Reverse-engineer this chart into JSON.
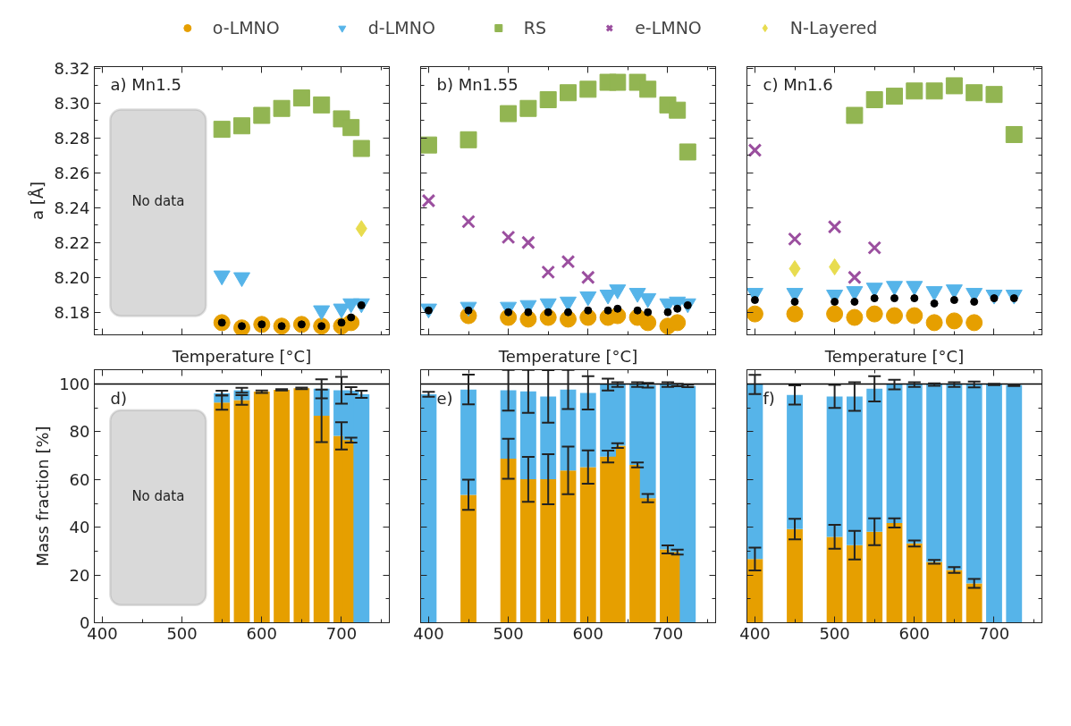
{
  "chart_data": [
    {
      "type": "scatter",
      "annotations": [
        "a) Mn1.5"
      ],
      "ylabel": "a [Å]",
      "tick_labels": "y",
      "legend": "top",
      "xlim": [
        390,
        760
      ],
      "ylim": [
        8.167,
        8.321
      ],
      "xticks": [
        400,
        {
          "value": 450,
          "label": null
        },
        500,
        {
          "value": 550,
          "label": null
        },
        600,
        {
          "value": 650,
          "label": null
        },
        700,
        {
          "value": 750,
          "label": null
        }
      ],
      "yticks": [
        {
          "value": 8.17,
          "label": null
        },
        {
          "value": 8.18,
          "label": "8.18"
        },
        {
          "value": 8.19,
          "label": null
        },
        {
          "value": 8.2,
          "label": "8.20"
        },
        {
          "value": 8.21,
          "label": null
        },
        {
          "value": 8.22,
          "label": "8.22"
        },
        {
          "value": 8.23,
          "label": null
        },
        {
          "value": 8.24,
          "label": "8.24"
        },
        {
          "value": 8.25,
          "label": null
        },
        {
          "value": 8.26,
          "label": "8.26"
        },
        {
          "value": 8.27,
          "label": null
        },
        {
          "value": 8.28,
          "label": "8.28"
        },
        {
          "value": 8.29,
          "label": null
        },
        {
          "value": 8.3,
          "label": "8.30"
        },
        {
          "value": 8.31,
          "label": null
        },
        {
          "value": 8.32,
          "label": "8.32"
        }
      ],
      "bands": [
        {
          "axis": "x",
          "from": 410,
          "to": 530,
          "label": "No data",
          "color": "#d9d9d9"
        }
      ],
      "series": [
        {
          "name": "o-LMNO",
          "color": "#e69f00",
          "marker": "circle",
          "x": [
            550,
            575,
            600,
            625,
            650,
            675,
            700,
            712
          ],
          "values": [
            8.174,
            8.171,
            8.173,
            8.172,
            8.173,
            8.172,
            8.172,
            8.174
          ]
        },
        {
          "name": "d-LMNO",
          "color": "#56b4e9",
          "marker": "triangle",
          "x": [
            550,
            575,
            675,
            700,
            712,
            725
          ],
          "values": [
            8.201,
            8.2,
            8.181,
            8.182,
            8.185,
            8.185
          ]
        },
        {
          "name": "RS",
          "color": "#92b552",
          "marker": "square",
          "x": [
            550,
            575,
            600,
            625,
            650,
            675,
            700,
            712,
            725
          ],
          "values": [
            8.285,
            8.287,
            8.293,
            8.297,
            8.303,
            8.299,
            8.291,
            8.286,
            8.274
          ]
        },
        {
          "name": "N-Layered",
          "color": "#e8dc4f",
          "marker": "diamond",
          "x": [
            725
          ],
          "values": [
            8.228
          ]
        },
        {
          "color": "#000000",
          "marker": "circle",
          "x": [
            550,
            575,
            600,
            625,
            650,
            675,
            700,
            712,
            725
          ],
          "values": [
            8.174,
            8.172,
            8.173,
            8.172,
            8.173,
            8.172,
            8.174,
            8.177,
            8.184
          ]
        }
      ]
    },
    {
      "type": "scatter",
      "annotations": [
        "b) Mn1.55"
      ],
      "tick_labels": false,
      "legend": "top",
      "xlim": [
        390,
        760
      ],
      "ylim": [
        8.167,
        8.321
      ],
      "xticks": [
        400,
        {
          "value": 450,
          "label": null
        },
        500,
        {
          "value": 550,
          "label": null
        },
        600,
        {
          "value": 650,
          "label": null
        },
        700,
        {
          "value": 750,
          "label": null
        }
      ],
      "yticks": [
        {
          "value": 8.17,
          "label": null
        },
        {
          "value": 8.18,
          "label": "8.18"
        },
        {
          "value": 8.19,
          "label": null
        },
        {
          "value": 8.2,
          "label": "8.20"
        },
        {
          "value": 8.21,
          "label": null
        },
        {
          "value": 8.22,
          "label": "8.22"
        },
        {
          "value": 8.23,
          "label": null
        },
        {
          "value": 8.24,
          "label": "8.24"
        },
        {
          "value": 8.25,
          "label": null
        },
        {
          "value": 8.26,
          "label": "8.26"
        },
        {
          "value": 8.27,
          "label": null
        },
        {
          "value": 8.28,
          "label": "8.28"
        },
        {
          "value": 8.29,
          "label": null
        },
        {
          "value": 8.3,
          "label": "8.30"
        },
        {
          "value": 8.31,
          "label": null
        },
        {
          "value": 8.32,
          "label": "8.32"
        }
      ],
      "series": [
        {
          "name": "o-LMNO",
          "color": "#e69f00",
          "marker": "circle",
          "x": [
            450,
            500,
            525,
            550,
            575,
            600,
            625,
            637,
            662,
            675,
            700,
            712
          ],
          "values": [
            8.178,
            8.177,
            8.176,
            8.177,
            8.176,
            8.177,
            8.177,
            8.178,
            8.177,
            8.174,
            8.172,
            8.174
          ]
        },
        {
          "name": "d-LMNO",
          "color": "#56b4e9",
          "marker": "triangle",
          "x": [
            400,
            450,
            500,
            525,
            550,
            575,
            600,
            625,
            637,
            662,
            675,
            700,
            712,
            725
          ],
          "values": [
            8.182,
            8.183,
            8.183,
            8.184,
            8.185,
            8.186,
            8.189,
            8.19,
            8.193,
            8.191,
            8.188,
            8.185,
            8.186,
            8.185
          ]
        },
        {
          "name": "RS",
          "color": "#92b552",
          "marker": "square",
          "x": [
            400,
            450,
            500,
            525,
            550,
            575,
            600,
            625,
            637,
            662,
            675,
            700,
            712,
            725
          ],
          "values": [
            8.276,
            8.279,
            8.294,
            8.297,
            8.302,
            8.306,
            8.308,
            8.312,
            8.312,
            8.312,
            8.308,
            8.299,
            8.296,
            8.272
          ]
        },
        {
          "name": "e-LMNO",
          "color": "#9b4f9f",
          "marker": "cross",
          "x": [
            400,
            450,
            500,
            525,
            550,
            575,
            600
          ],
          "values": [
            8.244,
            8.232,
            8.223,
            8.22,
            8.203,
            8.209,
            8.2
          ]
        },
        {
          "color": "#000000",
          "marker": "circle",
          "x": [
            400,
            450,
            500,
            525,
            550,
            575,
            600,
            625,
            637,
            662,
            675,
            700,
            712,
            725
          ],
          "values": [
            8.181,
            8.181,
            8.18,
            8.18,
            8.18,
            8.18,
            8.181,
            8.181,
            8.182,
            8.181,
            8.18,
            8.18,
            8.182,
            8.184
          ]
        }
      ]
    },
    {
      "type": "scatter",
      "annotations": [
        "c) Mn1.6"
      ],
      "tick_labels": false,
      "legend": "top",
      "xlim": [
        390,
        760
      ],
      "ylim": [
        8.167,
        8.321
      ],
      "xticks": [
        400,
        {
          "value": 450,
          "label": null
        },
        500,
        {
          "value": 550,
          "label": null
        },
        600,
        {
          "value": 650,
          "label": null
        },
        700,
        {
          "value": 750,
          "label": null
        }
      ],
      "yticks": [
        {
          "value": 8.17,
          "label": null
        },
        {
          "value": 8.18,
          "label": "8.18"
        },
        {
          "value": 8.19,
          "label": null
        },
        {
          "value": 8.2,
          "label": "8.20"
        },
        {
          "value": 8.21,
          "label": null
        },
        {
          "value": 8.22,
          "label": "8.22"
        },
        {
          "value": 8.23,
          "label": null
        },
        {
          "value": 8.24,
          "label": "8.24"
        },
        {
          "value": 8.25,
          "label": null
        },
        {
          "value": 8.26,
          "label": "8.26"
        },
        {
          "value": 8.27,
          "label": null
        },
        {
          "value": 8.28,
          "label": "8.28"
        },
        {
          "value": 8.29,
          "label": null
        },
        {
          "value": 8.3,
          "label": "8.30"
        },
        {
          "value": 8.31,
          "label": null
        },
        {
          "value": 8.32,
          "label": "8.32"
        }
      ],
      "series": [
        {
          "name": "o-LMNO",
          "color": "#e69f00",
          "marker": "circle",
          "x": [
            400,
            450,
            500,
            525,
            550,
            575,
            600,
            625,
            650,
            675
          ],
          "values": [
            8.179,
            8.179,
            8.179,
            8.177,
            8.179,
            8.178,
            8.178,
            8.174,
            8.175,
            8.174
          ]
        },
        {
          "name": "d-LMNO",
          "color": "#56b4e9",
          "marker": "triangle",
          "x": [
            400,
            450,
            500,
            525,
            550,
            575,
            600,
            625,
            650,
            675,
            700,
            725
          ],
          "values": [
            8.191,
            8.191,
            8.19,
            8.192,
            8.194,
            8.195,
            8.195,
            8.192,
            8.193,
            8.191,
            8.19,
            8.19
          ]
        },
        {
          "name": "RS",
          "color": "#92b552",
          "marker": "square",
          "x": [
            525,
            550,
            575,
            600,
            625,
            650,
            675,
            700,
            725
          ],
          "values": [
            8.293,
            8.302,
            8.304,
            8.307,
            8.307,
            8.31,
            8.306,
            8.305,
            8.282
          ]
        },
        {
          "name": "e-LMNO",
          "color": "#9b4f9f",
          "marker": "cross",
          "x": [
            400,
            450,
            500,
            525,
            550
          ],
          "values": [
            8.273,
            8.222,
            8.229,
            8.2,
            8.217
          ]
        },
        {
          "name": "N-Layered",
          "color": "#e8dc4f",
          "marker": "diamond",
          "x": [
            450,
            500
          ],
          "values": [
            8.205,
            8.206
          ]
        },
        {
          "color": "#000000",
          "marker": "circle",
          "x": [
            400,
            450,
            500,
            525,
            550,
            575,
            600,
            625,
            650,
            675,
            700,
            725
          ],
          "values": [
            8.187,
            8.186,
            8.186,
            8.186,
            8.188,
            8.188,
            8.188,
            8.185,
            8.187,
            8.186,
            8.188,
            8.188
          ]
        }
      ]
    },
    {
      "type": "bar",
      "stacked": true,
      "annotations": [
        "d)"
      ],
      "ylabel": "Mass fraction [%]",
      "xlabel": "Temperature [°C]",
      "legend": "top",
      "xlim": [
        390,
        760
      ],
      "ylim": [
        0,
        106
      ],
      "xticks": [
        400,
        {
          "value": 450,
          "label": null
        },
        500,
        {
          "value": 550,
          "label": null
        },
        600,
        {
          "value": 650,
          "label": null
        },
        700,
        {
          "value": 750,
          "label": null
        }
      ],
      "yticks": [
        0,
        {
          "value": 10,
          "label": null
        },
        20,
        {
          "value": 30,
          "label": null
        },
        40,
        {
          "value": 50,
          "label": null
        },
        60,
        {
          "value": 70,
          "label": null
        },
        80,
        {
          "value": 90,
          "label": null
        },
        100
      ],
      "bands": [
        {
          "axis": "x",
          "from": 410,
          "to": 530,
          "label": "No data",
          "color": "#d9d9d9"
        }
      ],
      "ref_lines": [
        {
          "axis": "y",
          "value": 100,
          "color": "#000000"
        }
      ],
      "x": [
        550,
        575,
        600,
        625,
        650,
        675,
        700,
        712,
        725
      ],
      "series": [
        {
          "name": "o-LMNO",
          "color": "#e69f00",
          "values": [
            92.2,
            93.3,
            96.8,
            97.6,
            98.2,
            86.7,
            78.3,
            76.5,
            null
          ],
          "errors": [
            3,
            2,
            0.5,
            0.3,
            0.3,
            11,
            5.7,
            1,
            null
          ]
        },
        {
          "name": "d-LMNO",
          "color": "#56b4e9",
          "values": [
            4.0,
            4.1,
            null,
            null,
            null,
            11.3,
            19.1,
            20.7,
            95.7
          ],
          "errors": [
            1,
            1,
            null,
            null,
            null,
            4,
            5.6,
            1.5,
            1.5
          ]
        }
      ]
    },
    {
      "type": "bar",
      "stacked": true,
      "annotations": [
        "e)"
      ],
      "xlabel": "Temperature [°C]",
      "tick_labels": "x",
      "legend": "top",
      "xlim": [
        390,
        760
      ],
      "ylim": [
        0,
        106
      ],
      "xticks": [
        400,
        {
          "value": 450,
          "label": null
        },
        500,
        {
          "value": 550,
          "label": null
        },
        600,
        {
          "value": 650,
          "label": null
        },
        700,
        {
          "value": 750,
          "label": null
        }
      ],
      "yticks": [
        0,
        {
          "value": 10,
          "label": null
        },
        20,
        {
          "value": 30,
          "label": null
        },
        40,
        {
          "value": 50,
          "label": null
        },
        60,
        {
          "value": 70,
          "label": null
        },
        80,
        {
          "value": 90,
          "label": null
        },
        100
      ],
      "ref_lines": [
        {
          "axis": "y",
          "value": 100,
          "color": "#000000"
        }
      ],
      "x": [
        400,
        450,
        500,
        525,
        550,
        575,
        600,
        625,
        637,
        662,
        675,
        700,
        712,
        725
      ],
      "series": [
        {
          "name": "o-LMNO",
          "color": "#e69f00",
          "values": [
            null,
            53.6,
            68.7,
            60.1,
            60.1,
            63.8,
            65.2,
            69.6,
            74.2,
            66.1,
            52.2,
            30.7,
            29.6,
            null
          ],
          "errors": [
            null,
            6.3,
            8.4,
            9.4,
            10.5,
            10,
            7,
            2.5,
            1,
            1,
            1.7,
            1.7,
            1,
            null
          ]
        },
        {
          "name": "d-LMNO",
          "color": "#56b4e9",
          "values": [
            95.7,
            44.1,
            28.7,
            36.8,
            34.7,
            33.9,
            31.1,
            30.2,
            25.6,
            33.7,
            47.3,
            69.1,
            70.0,
            99.2
          ],
          "errors": [
            1,
            6.2,
            8.5,
            9,
            11,
            8.2,
            7,
            2.5,
            1,
            1,
            1,
            1,
            0.5,
            0.5
          ]
        }
      ]
    },
    {
      "type": "bar",
      "stacked": true,
      "annotations": [
        "f)"
      ],
      "xlabel": "Temperature [°C]",
      "tick_labels": "x",
      "legend": "top",
      "xlim": [
        390,
        760
      ],
      "ylim": [
        0,
        106
      ],
      "xticks": [
        400,
        {
          "value": 450,
          "label": null
        },
        500,
        {
          "value": 550,
          "label": null
        },
        600,
        {
          "value": 650,
          "label": null
        },
        700,
        {
          "value": 750,
          "label": null
        }
      ],
      "yticks": [
        0,
        {
          "value": 10,
          "label": null
        },
        20,
        {
          "value": 30,
          "label": null
        },
        40,
        {
          "value": 50,
          "label": null
        },
        60,
        {
          "value": 70,
          "label": null
        },
        80,
        {
          "value": 90,
          "label": null
        },
        100
      ],
      "ref_lines": [
        {
          "axis": "y",
          "value": 100,
          "color": "#000000"
        }
      ],
      "x": [
        400,
        450,
        500,
        525,
        550,
        575,
        600,
        625,
        650,
        675,
        700,
        725
      ],
      "series": [
        {
          "name": "o-LMNO",
          "color": "#e69f00",
          "values": [
            26.7,
            39.2,
            36.0,
            32.5,
            38.1,
            41.8,
            33.2,
            25.5,
            22.1,
            16.5,
            null,
            null
          ],
          "errors": [
            4.8,
            4.3,
            5,
            6,
            5.6,
            1.9,
            1.3,
            0.8,
            1.2,
            1.9,
            null,
            null
          ]
        },
        {
          "name": "d-LMNO",
          "color": "#56b4e9",
          "values": [
            73.1,
            56.2,
            58.8,
            62.3,
            59.9,
            58.0,
            66.6,
            74.3,
            77.7,
            83.3,
            99.8,
            99.5
          ],
          "errors": [
            4,
            4,
            4.8,
            6,
            5.3,
            2,
            1,
            0.5,
            1,
            1.2,
            0.3,
            0.3
          ]
        }
      ]
    }
  ]
}
